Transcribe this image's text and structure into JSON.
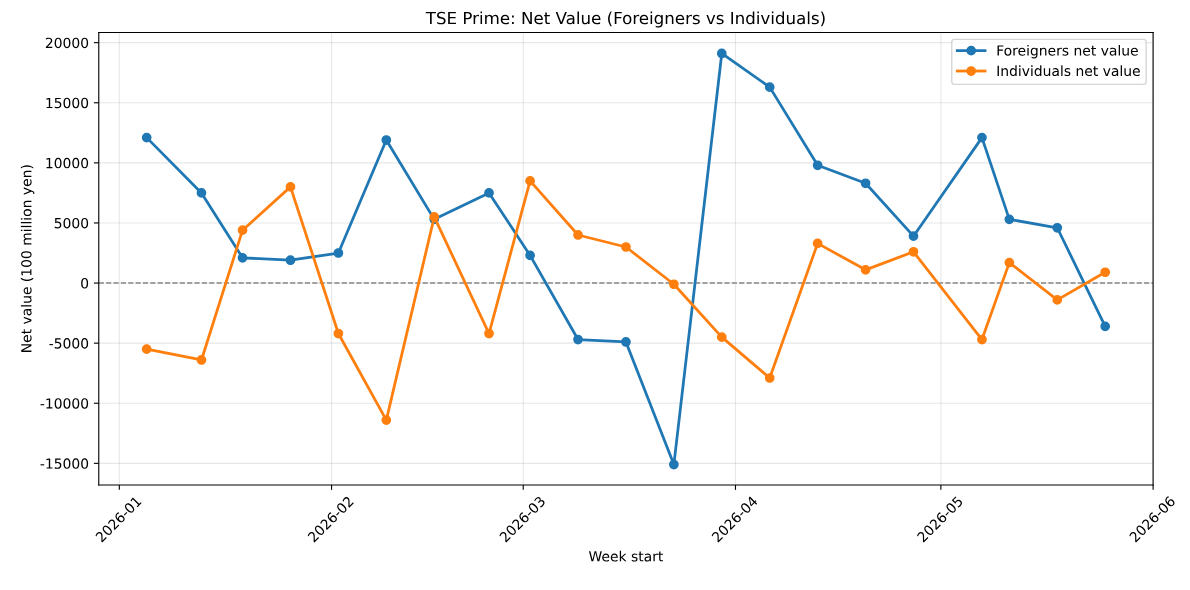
{
  "chart_data": {
    "type": "line",
    "title": "TSE Prime: Net Value (Foreigners vs Individuals)",
    "xlabel": "Week start",
    "ylabel": "Net value (100 million yen)",
    "x": [
      "2026-01-05",
      "2026-01-13",
      "2026-01-19",
      "2026-01-26",
      "2026-02-02",
      "2026-02-09",
      "2026-02-16",
      "2026-02-24",
      "2026-03-02",
      "2026-03-09",
      "2026-03-16",
      "2026-03-23",
      "2026-03-30",
      "2026-04-06",
      "2026-04-13",
      "2026-04-20",
      "2026-04-27",
      "2026-05-07",
      "2026-05-11",
      "2026-05-18",
      "2026-05-25"
    ],
    "series": [
      {
        "name": "Foreigners net value",
        "color": "#1f77b4",
        "values": [
          12100,
          7500,
          2100,
          1900,
          2500,
          11900,
          5300,
          7500,
          2300,
          -4700,
          -4900,
          -15100,
          19100,
          16300,
          9800,
          8300,
          3900,
          12100,
          5300,
          4600,
          -3600
        ]
      },
      {
        "name": "Individuals net value",
        "color": "#ff7f0e",
        "values": [
          -5500,
          -6400,
          4400,
          8000,
          -4200,
          -11400,
          5500,
          -4200,
          8500,
          4000,
          3000,
          -100,
          -4500,
          -7900,
          3300,
          1100,
          2600,
          -4700,
          1700,
          -1400,
          900
        ]
      }
    ],
    "xlim": [
      "2025-12-29",
      "2026-06-01"
    ],
    "xticks": [
      {
        "value": "2026-01-01",
        "label": "2026-01"
      },
      {
        "value": "2026-02-01",
        "label": "2026-02"
      },
      {
        "value": "2026-03-01",
        "label": "2026-03"
      },
      {
        "value": "2026-04-01",
        "label": "2026-04"
      },
      {
        "value": "2026-05-01",
        "label": "2026-05"
      },
      {
        "value": "2026-06-01",
        "label": "2026-06"
      }
    ],
    "ylim": [
      -16800,
      20850
    ],
    "yticks": [
      -15000,
      -10000,
      -5000,
      0,
      5000,
      10000,
      15000,
      20000
    ],
    "ref_lines": [
      {
        "axis": "y",
        "value": 0,
        "label": null,
        "color": "#808080",
        "line_style": "dashed"
      }
    ],
    "grid": true,
    "legend": "top right",
    "marker": "circle",
    "line_style": "solid"
  }
}
